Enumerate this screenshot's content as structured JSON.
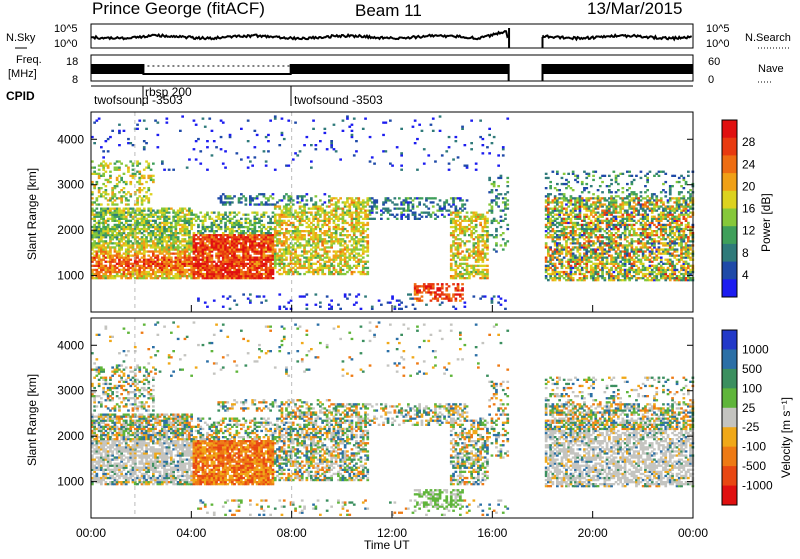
{
  "header": {
    "station": "Prince George (fitACF)",
    "beam": "Beam 11",
    "date": "13/Mar/2015"
  },
  "strip": {
    "nsky_label": "N.Sky",
    "nsky_ticks": [
      "10^5",
      "10^0"
    ],
    "nsearch_label": "N.Search",
    "freq_label_1": "Freq.",
    "freq_label_2": "[MHz]",
    "freq_ticks": [
      "18",
      "8"
    ],
    "nave_ticks": [
      "60",
      "0"
    ],
    "nave_label": "Nave",
    "cpid_label": "CPID",
    "cpid_segments": [
      {
        "name": "twofsound -3503",
        "start": "00:00",
        "end": "01:45"
      },
      {
        "name": "rbsp 200",
        "start": "01:45",
        "end": "08:00"
      },
      {
        "name": "twofsound -3503",
        "start": "08:00",
        "end": "24:00"
      }
    ]
  },
  "chart_data": [
    {
      "type": "heatmap",
      "panel": "power",
      "xlabel": "",
      "ylabel": "Slant Range [km]",
      "xlim": [
        "00:00",
        "24:00"
      ],
      "ylim": [
        200,
        4600
      ],
      "yticks": [
        "1000",
        "2000",
        "3000",
        "4000"
      ],
      "colorbar_label": "Power [dB]",
      "colorbar_ticks": [
        "4",
        "8",
        "12",
        "16",
        "20",
        "24",
        "28"
      ],
      "colorbar_range": [
        0,
        32
      ],
      "data_gap": [
        "16:40",
        "18:00"
      ],
      "colors": [
        "#1c1cf0",
        "#1f4aa8",
        "#2f7a7a",
        "#3f9f5a",
        "#86c83a",
        "#dcd21f",
        "#f0a016",
        "#ee6d12",
        "#e83a10",
        "#e01010"
      ]
    },
    {
      "type": "heatmap",
      "panel": "velocity",
      "xlabel": "Time UT",
      "ylabel": "Slant Range [km]",
      "xlim": [
        "00:00",
        "24:00"
      ],
      "ylim": [
        200,
        4600
      ],
      "yticks": [
        "1000",
        "2000",
        "3000",
        "4000"
      ],
      "xticks": [
        "00:00",
        "04:00",
        "08:00",
        "12:00",
        "16:00",
        "20:00",
        "00:00"
      ],
      "colorbar_label": "Velocity [m s⁻¹]",
      "colorbar_ticks": [
        "1000",
        "500",
        "100",
        "25",
        "-25",
        "-100",
        "-500",
        "-1000"
      ],
      "colorbar_range": [
        -1000,
        1000
      ],
      "data_gap": [
        "16:40",
        "18:00"
      ],
      "colors": [
        "#2239c8",
        "#2b6fa6",
        "#3b8f5f",
        "#5fb53a",
        "#c4c4c0",
        "#f0a818",
        "#ee7a14",
        "#e84712",
        "#e01010"
      ]
    }
  ]
}
